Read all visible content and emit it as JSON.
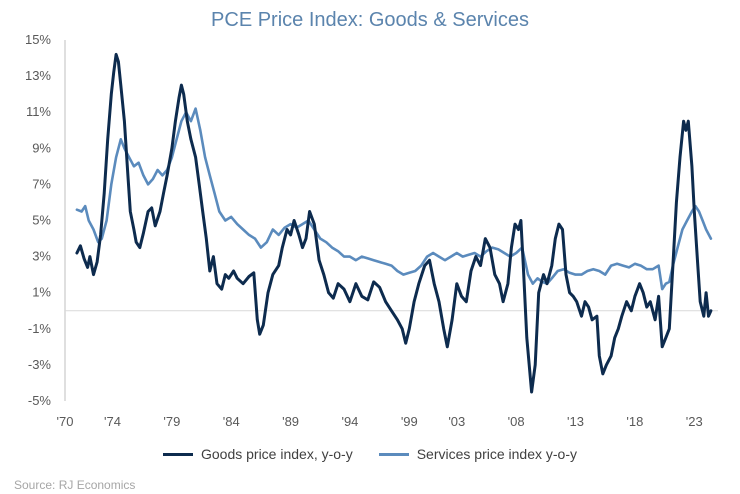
{
  "title": "PCE Price Index: Goods & Services",
  "source": "Source: RJ Economics",
  "colors": {
    "goods": "#0d2b4e",
    "services": "#5b8bbd",
    "title": "#5b84ad",
    "axis": "#bfbfbf"
  },
  "chart_data": {
    "type": "line",
    "title": "PCE Price Index: Goods & Services",
    "xlabel": "",
    "ylabel": "",
    "xlim": [
      1970,
      2025
    ],
    "ylim": [
      -5,
      15
    ],
    "grid": false,
    "legend_position": "bottom",
    "x_ticks": [
      {
        "value": 1970,
        "label": "'70"
      },
      {
        "value": 1974,
        "label": "'74"
      },
      {
        "value": 1979,
        "label": "'79"
      },
      {
        "value": 1984,
        "label": "'84"
      },
      {
        "value": 1989,
        "label": "'89"
      },
      {
        "value": 1994,
        "label": "'94"
      },
      {
        "value": 1999,
        "label": "'99"
      },
      {
        "value": 2003,
        "label": "'03"
      },
      {
        "value": 2008,
        "label": "'08"
      },
      {
        "value": 2013,
        "label": "'13"
      },
      {
        "value": 2018,
        "label": "'18"
      },
      {
        "value": 2023,
        "label": "'23"
      }
    ],
    "y_ticks": [
      {
        "value": 15,
        "label": "15%"
      },
      {
        "value": 13,
        "label": "13%"
      },
      {
        "value": 11,
        "label": "11%"
      },
      {
        "value": 9,
        "label": "9%"
      },
      {
        "value": 7,
        "label": "7%"
      },
      {
        "value": 5,
        "label": "5%"
      },
      {
        "value": 3,
        "label": "3%"
      },
      {
        "value": 1,
        "label": "1%"
      },
      {
        "value": -1,
        "label": "-1%"
      },
      {
        "value": -3,
        "label": "-3%"
      },
      {
        "value": -5,
        "label": "-5%"
      }
    ],
    "series": [
      {
        "name": "Goods price index, y-o-y",
        "color": "#0d2b4e",
        "points": [
          [
            1971.0,
            3.2
          ],
          [
            1971.3,
            3.6
          ],
          [
            1971.6,
            2.9
          ],
          [
            1971.9,
            2.4
          ],
          [
            1972.1,
            3.0
          ],
          [
            1972.4,
            2.0
          ],
          [
            1972.7,
            2.7
          ],
          [
            1973.0,
            4.2
          ],
          [
            1973.3,
            6.5
          ],
          [
            1973.6,
            9.5
          ],
          [
            1973.9,
            12.0
          ],
          [
            1974.1,
            13.2
          ],
          [
            1974.3,
            14.2
          ],
          [
            1974.5,
            13.8
          ],
          [
            1974.7,
            12.5
          ],
          [
            1975.0,
            10.5
          ],
          [
            1975.3,
            7.5
          ],
          [
            1975.5,
            5.5
          ],
          [
            1975.8,
            4.5
          ],
          [
            1976.0,
            3.8
          ],
          [
            1976.3,
            3.5
          ],
          [
            1976.6,
            4.3
          ],
          [
            1977.0,
            5.5
          ],
          [
            1977.3,
            5.7
          ],
          [
            1977.6,
            4.7
          ],
          [
            1978.0,
            5.5
          ],
          [
            1978.3,
            6.5
          ],
          [
            1978.6,
            7.5
          ],
          [
            1979.0,
            9.0
          ],
          [
            1979.3,
            10.5
          ],
          [
            1979.6,
            11.8
          ],
          [
            1979.8,
            12.5
          ],
          [
            1980.0,
            12.0
          ],
          [
            1980.3,
            10.5
          ],
          [
            1980.6,
            9.5
          ],
          [
            1981.0,
            8.5
          ],
          [
            1981.3,
            7.0
          ],
          [
            1981.6,
            5.5
          ],
          [
            1981.9,
            4.0
          ],
          [
            1982.2,
            2.2
          ],
          [
            1982.5,
            3.0
          ],
          [
            1982.8,
            1.5
          ],
          [
            1983.2,
            1.2
          ],
          [
            1983.5,
            2.0
          ],
          [
            1983.8,
            1.8
          ],
          [
            1984.2,
            2.2
          ],
          [
            1984.5,
            1.8
          ],
          [
            1985.0,
            1.5
          ],
          [
            1985.5,
            1.9
          ],
          [
            1985.9,
            2.1
          ],
          [
            1986.2,
            -0.5
          ],
          [
            1986.4,
            -1.3
          ],
          [
            1986.7,
            -0.8
          ],
          [
            1987.1,
            1.0
          ],
          [
            1987.5,
            2.0
          ],
          [
            1988.0,
            2.5
          ],
          [
            1988.3,
            3.5
          ],
          [
            1988.7,
            4.5
          ],
          [
            1989.0,
            4.2
          ],
          [
            1989.3,
            5.0
          ],
          [
            1989.7,
            4.2
          ],
          [
            1990.0,
            3.5
          ],
          [
            1990.3,
            4.0
          ],
          [
            1990.6,
            5.5
          ],
          [
            1991.0,
            4.8
          ],
          [
            1991.4,
            2.8
          ],
          [
            1991.8,
            2.0
          ],
          [
            1992.2,
            1.0
          ],
          [
            1992.6,
            0.7
          ],
          [
            1993.0,
            1.5
          ],
          [
            1993.5,
            1.2
          ],
          [
            1994.0,
            0.5
          ],
          [
            1994.5,
            1.5
          ],
          [
            1995.0,
            0.8
          ],
          [
            1995.5,
            0.6
          ],
          [
            1996.0,
            1.6
          ],
          [
            1996.5,
            1.3
          ],
          [
            1997.0,
            0.5
          ],
          [
            1997.5,
            0.0
          ],
          [
            1998.0,
            -0.5
          ],
          [
            1998.4,
            -1.0
          ],
          [
            1998.7,
            -1.8
          ],
          [
            1999.0,
            -1.0
          ],
          [
            1999.4,
            0.5
          ],
          [
            1999.8,
            1.5
          ],
          [
            2000.3,
            2.5
          ],
          [
            2000.7,
            2.8
          ],
          [
            2001.1,
            1.5
          ],
          [
            2001.5,
            0.5
          ],
          [
            2001.9,
            -1.0
          ],
          [
            2002.2,
            -2.0
          ],
          [
            2002.6,
            -0.5
          ],
          [
            2003.0,
            1.5
          ],
          [
            2003.4,
            0.8
          ],
          [
            2003.8,
            0.5
          ],
          [
            2004.2,
            2.2
          ],
          [
            2004.6,
            3.0
          ],
          [
            2005.0,
            2.5
          ],
          [
            2005.4,
            4.0
          ],
          [
            2005.8,
            3.5
          ],
          [
            2006.2,
            2.0
          ],
          [
            2006.6,
            1.5
          ],
          [
            2006.9,
            0.5
          ],
          [
            2007.3,
            1.5
          ],
          [
            2007.6,
            3.5
          ],
          [
            2007.9,
            4.8
          ],
          [
            2008.2,
            4.5
          ],
          [
            2008.4,
            5.0
          ],
          [
            2008.6,
            2.5
          ],
          [
            2008.9,
            -1.5
          ],
          [
            2009.1,
            -3.0
          ],
          [
            2009.3,
            -4.5
          ],
          [
            2009.6,
            -3.0
          ],
          [
            2009.9,
            1.0
          ],
          [
            2010.3,
            2.0
          ],
          [
            2010.6,
            1.5
          ],
          [
            2011.0,
            2.5
          ],
          [
            2011.3,
            4.0
          ],
          [
            2011.6,
            4.8
          ],
          [
            2011.9,
            4.5
          ],
          [
            2012.2,
            2.0
          ],
          [
            2012.5,
            1.0
          ],
          [
            2012.8,
            0.8
          ],
          [
            2013.1,
            0.5
          ],
          [
            2013.5,
            -0.3
          ],
          [
            2013.8,
            0.5
          ],
          [
            2014.1,
            0.2
          ],
          [
            2014.4,
            -0.5
          ],
          [
            2014.8,
            -0.3
          ],
          [
            2015.0,
            -2.5
          ],
          [
            2015.3,
            -3.5
          ],
          [
            2015.6,
            -3.0
          ],
          [
            2016.0,
            -2.5
          ],
          [
            2016.3,
            -1.5
          ],
          [
            2016.6,
            -1.0
          ],
          [
            2016.9,
            -0.3
          ],
          [
            2017.3,
            0.5
          ],
          [
            2017.7,
            0.0
          ],
          [
            2018.0,
            0.8
          ],
          [
            2018.4,
            1.5
          ],
          [
            2018.7,
            1.0
          ],
          [
            2019.0,
            0.2
          ],
          [
            2019.3,
            0.5
          ],
          [
            2019.7,
            -0.5
          ],
          [
            2020.0,
            0.8
          ],
          [
            2020.3,
            -2.0
          ],
          [
            2020.6,
            -1.5
          ],
          [
            2020.9,
            -1.0
          ],
          [
            2021.2,
            2.5
          ],
          [
            2021.5,
            6.0
          ],
          [
            2021.8,
            8.5
          ],
          [
            2022.1,
            10.5
          ],
          [
            2022.3,
            10.0
          ],
          [
            2022.5,
            10.5
          ],
          [
            2022.8,
            8.0
          ],
          [
            2023.0,
            5.5
          ],
          [
            2023.3,
            2.5
          ],
          [
            2023.5,
            0.5
          ],
          [
            2023.8,
            -0.3
          ],
          [
            2024.0,
            1.0
          ],
          [
            2024.2,
            -0.3
          ],
          [
            2024.4,
            0.0
          ]
        ]
      },
      {
        "name": "Services price index y-o-y",
        "color": "#5b8bbd",
        "points": [
          [
            1971.0,
            5.6
          ],
          [
            1971.4,
            5.5
          ],
          [
            1971.7,
            5.8
          ],
          [
            1972.0,
            5.0
          ],
          [
            1972.4,
            4.5
          ],
          [
            1972.8,
            3.8
          ],
          [
            1973.1,
            4.0
          ],
          [
            1973.5,
            5.0
          ],
          [
            1973.9,
            7.0
          ],
          [
            1974.3,
            8.5
          ],
          [
            1974.7,
            9.5
          ],
          [
            1975.0,
            9.0
          ],
          [
            1975.4,
            8.5
          ],
          [
            1975.8,
            8.0
          ],
          [
            1976.2,
            8.2
          ],
          [
            1976.6,
            7.5
          ],
          [
            1977.0,
            7.0
          ],
          [
            1977.4,
            7.3
          ],
          [
            1977.8,
            7.8
          ],
          [
            1978.2,
            7.5
          ],
          [
            1978.6,
            7.8
          ],
          [
            1979.0,
            8.5
          ],
          [
            1979.4,
            9.5
          ],
          [
            1979.8,
            10.5
          ],
          [
            1980.2,
            11.0
          ],
          [
            1980.6,
            10.5
          ],
          [
            1981.0,
            11.2
          ],
          [
            1981.4,
            10.0
          ],
          [
            1981.8,
            8.5
          ],
          [
            1982.2,
            7.5
          ],
          [
            1982.6,
            6.5
          ],
          [
            1983.0,
            5.5
          ],
          [
            1983.5,
            5.0
          ],
          [
            1984.0,
            5.2
          ],
          [
            1984.5,
            4.8
          ],
          [
            1985.0,
            4.5
          ],
          [
            1985.5,
            4.2
          ],
          [
            1986.0,
            4.0
          ],
          [
            1986.5,
            3.5
          ],
          [
            1987.0,
            3.8
          ],
          [
            1987.5,
            4.5
          ],
          [
            1988.0,
            4.2
          ],
          [
            1988.5,
            4.6
          ],
          [
            1989.0,
            4.8
          ],
          [
            1989.5,
            4.6
          ],
          [
            1990.0,
            4.8
          ],
          [
            1990.5,
            5.0
          ],
          [
            1991.0,
            4.5
          ],
          [
            1991.5,
            4.0
          ],
          [
            1992.0,
            3.8
          ],
          [
            1992.5,
            3.5
          ],
          [
            1993.0,
            3.3
          ],
          [
            1993.5,
            3.0
          ],
          [
            1994.0,
            3.0
          ],
          [
            1994.5,
            2.8
          ],
          [
            1995.0,
            3.0
          ],
          [
            1995.5,
            2.9
          ],
          [
            1996.0,
            2.8
          ],
          [
            1996.5,
            2.7
          ],
          [
            1997.0,
            2.6
          ],
          [
            1997.5,
            2.5
          ],
          [
            1998.0,
            2.2
          ],
          [
            1998.5,
            2.0
          ],
          [
            1999.0,
            2.1
          ],
          [
            1999.5,
            2.2
          ],
          [
            2000.0,
            2.5
          ],
          [
            2000.5,
            3.0
          ],
          [
            2001.0,
            3.2
          ],
          [
            2001.5,
            3.0
          ],
          [
            2002.0,
            2.8
          ],
          [
            2002.5,
            3.0
          ],
          [
            2003.0,
            3.2
          ],
          [
            2003.5,
            3.0
          ],
          [
            2004.0,
            3.1
          ],
          [
            2004.5,
            3.2
          ],
          [
            2005.0,
            3.0
          ],
          [
            2005.5,
            3.3
          ],
          [
            2006.0,
            3.5
          ],
          [
            2006.5,
            3.4
          ],
          [
            2007.0,
            3.2
          ],
          [
            2007.5,
            3.0
          ],
          [
            2008.0,
            3.2
          ],
          [
            2008.5,
            3.5
          ],
          [
            2009.0,
            2.0
          ],
          [
            2009.4,
            1.5
          ],
          [
            2009.8,
            1.8
          ],
          [
            2010.2,
            1.6
          ],
          [
            2010.6,
            1.5
          ],
          [
            2011.0,
            1.8
          ],
          [
            2011.5,
            2.2
          ],
          [
            2012.0,
            2.3
          ],
          [
            2012.5,
            2.1
          ],
          [
            2013.0,
            2.0
          ],
          [
            2013.5,
            2.0
          ],
          [
            2014.0,
            2.2
          ],
          [
            2014.5,
            2.3
          ],
          [
            2015.0,
            2.2
          ],
          [
            2015.5,
            2.0
          ],
          [
            2016.0,
            2.5
          ],
          [
            2016.5,
            2.6
          ],
          [
            2017.0,
            2.5
          ],
          [
            2017.5,
            2.4
          ],
          [
            2018.0,
            2.6
          ],
          [
            2018.5,
            2.5
          ],
          [
            2019.0,
            2.3
          ],
          [
            2019.5,
            2.3
          ],
          [
            2020.0,
            2.5
          ],
          [
            2020.3,
            1.2
          ],
          [
            2020.6,
            1.5
          ],
          [
            2020.9,
            1.6
          ],
          [
            2021.2,
            2.5
          ],
          [
            2021.6,
            3.5
          ],
          [
            2022.0,
            4.5
          ],
          [
            2022.4,
            5.0
          ],
          [
            2022.8,
            5.5
          ],
          [
            2023.1,
            5.8
          ],
          [
            2023.4,
            5.5
          ],
          [
            2023.7,
            5.0
          ],
          [
            2024.0,
            4.5
          ],
          [
            2024.4,
            4.0
          ]
        ]
      }
    ]
  }
}
